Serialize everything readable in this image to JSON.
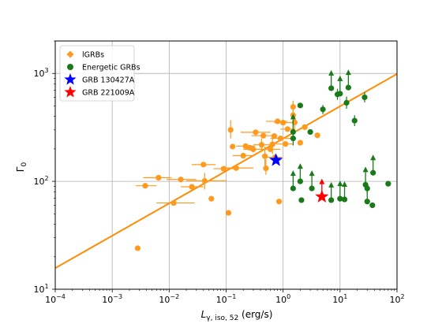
{
  "chart_data": {
    "type": "scatter",
    "xlabel": "L_{γ, iso, 52} (erg/s)",
    "ylabel": "Γ_0",
    "x_scale": "log",
    "y_scale": "log",
    "xlim": [
      0.0001,
      100
    ],
    "ylim": [
      10,
      2000
    ],
    "grid": true,
    "legend_position": "top-left",
    "x_ticks": [
      {
        "value": 0.0001,
        "base": "10",
        "exp": "−4"
      },
      {
        "value": 0.001,
        "base": "10",
        "exp": "−3"
      },
      {
        "value": 0.01,
        "base": "10",
        "exp": "−2"
      },
      {
        "value": 0.1,
        "base": "10",
        "exp": "−1"
      },
      {
        "value": 1,
        "base": "10",
        "exp": "0"
      },
      {
        "value": 10,
        "base": "10",
        "exp": "1"
      },
      {
        "value": 100,
        "base": "10",
        "exp": "2"
      }
    ],
    "y_ticks": [
      {
        "value": 10,
        "base": "10",
        "exp": "1"
      },
      {
        "value": 100,
        "base": "10",
        "exp": "2"
      },
      {
        "value": 1000,
        "base": "10",
        "exp": "3"
      }
    ],
    "fit_line": {
      "color": "#ff8c00",
      "points": [
        [
          0.0001,
          15.7
        ],
        [
          100,
          990
        ]
      ]
    },
    "series": [
      {
        "name": "lGRBs",
        "marker": "circle",
        "color": "#ff9a1f",
        "points": [
          {
            "x": 0.0028,
            "y": 24
          },
          {
            "x": 0.0038,
            "y": 91,
            "xerr": [
              0.0026,
              0.006
            ]
          },
          {
            "x": 0.0065,
            "y": 108,
            "xerr": [
              0.0035,
              0.011
            ]
          },
          {
            "x": 0.012,
            "y": 63,
            "xerr": [
              0.006,
              0.028
            ]
          },
          {
            "x": 0.016,
            "y": 104,
            "xerr": [
              0.009,
              0.03
            ]
          },
          {
            "x": 0.025,
            "y": 89,
            "xerr": [
              0.016,
              0.04
            ]
          },
          {
            "x": 0.04,
            "y": 143,
            "xerr": [
              0.025,
              0.065
            ]
          },
          {
            "x": 0.042,
            "y": 101,
            "xerr": [
              0.02,
              0.1
            ],
            "yerr": [
              84,
              120
            ]
          },
          {
            "x": 0.055,
            "y": 69
          },
          {
            "x": 0.09,
            "y": 131,
            "xerr": [
              0.06,
              0.14
            ]
          },
          {
            "x": 0.11,
            "y": 51
          },
          {
            "x": 0.12,
            "y": 300,
            "yerr": [
              250,
              370
            ]
          },
          {
            "x": 0.13,
            "y": 210
          },
          {
            "x": 0.15,
            "y": 133,
            "xerr": [
              0.1,
              0.3
            ]
          },
          {
            "x": 0.2,
            "y": 173,
            "xerr": [
              0.13,
              0.3
            ]
          },
          {
            "x": 0.22,
            "y": 212,
            "xerr": [
              0.15,
              0.32
            ]
          },
          {
            "x": 0.26,
            "y": 205
          },
          {
            "x": 0.3,
            "y": 198,
            "xerr": [
              0.2,
              0.45
            ]
          },
          {
            "x": 0.33,
            "y": 285,
            "xerr": [
              0.18,
              0.6
            ]
          },
          {
            "x": 0.42,
            "y": 218,
            "xerr": [
              0.3,
              0.6
            ],
            "yerr": [
              190,
              250
            ]
          },
          {
            "x": 0.45,
            "y": 265,
            "xerr": [
              0.28,
              0.7
            ]
          },
          {
            "x": 0.48,
            "y": 171,
            "yerr": [
              140,
              210
            ]
          },
          {
            "x": 0.5,
            "y": 132,
            "yerr": [
              115,
              160
            ]
          },
          {
            "x": 0.6,
            "y": 198,
            "xerr": [
              0.4,
              0.9
            ]
          },
          {
            "x": 0.65,
            "y": 220,
            "yerr": [
              180,
              260
            ]
          },
          {
            "x": 0.7,
            "y": 263
          },
          {
            "x": 0.72,
            "y": 167,
            "xerr": [
              0.5,
              0.95
            ]
          },
          {
            "x": 0.8,
            "y": 360,
            "xerr": [
              0.5,
              1.2
            ]
          },
          {
            "x": 0.85,
            "y": 65
          },
          {
            "x": 0.9,
            "y": 250,
            "xerr": [
              0.6,
              1.4
            ]
          },
          {
            "x": 1.0,
            "y": 350,
            "xerr": [
              0.7,
              1.6
            ]
          },
          {
            "x": 1.1,
            "y": 222,
            "xerr": [
              0.75,
              1.5
            ]
          },
          {
            "x": 1.2,
            "y": 305,
            "xerr": [
              0.9,
              1.6
            ]
          },
          {
            "x": 1.5,
            "y": 490,
            "yerr": [
              430,
              560
            ]
          },
          {
            "x": 1.5,
            "y": 410,
            "yerr": [
              360,
              470
            ]
          },
          {
            "x": 1.6,
            "y": 352,
            "yerr": [
              300,
              400
            ]
          },
          {
            "x": 2.0,
            "y": 228
          },
          {
            "x": 2.4,
            "y": 318
          },
          {
            "x": 4.0,
            "y": 267
          }
        ]
      },
      {
        "name": "Energetic GRBs",
        "marker": "circle",
        "color": "#1a7a1a",
        "points": [
          {
            "x": 1.5,
            "y": 250,
            "yerr": [
              215,
              295
            ]
          },
          {
            "x": 1.5,
            "y": 287,
            "lower_limit": true
          },
          {
            "x": 1.5,
            "y": 86,
            "lower_limit": true
          },
          {
            "x": 2.0,
            "y": 100,
            "lower_limit": true
          },
          {
            "x": 2.0,
            "y": 505
          },
          {
            "x": 2.1,
            "y": 67
          },
          {
            "x": 3.0,
            "y": 287
          },
          {
            "x": 3.2,
            "y": 86,
            "lower_limit": true
          },
          {
            "x": 5.0,
            "y": 465,
            "yerr": [
              420,
              510
            ]
          },
          {
            "x": 7.0,
            "y": 730,
            "lower_limit": true
          },
          {
            "x": 7.0,
            "y": 67,
            "lower_limit": true
          },
          {
            "x": 9.0,
            "y": 640,
            "yerr": [
              570,
              720
            ]
          },
          {
            "x": 10,
            "y": 650,
            "lower_limit": true
          },
          {
            "x": 10,
            "y": 69,
            "lower_limit": true
          },
          {
            "x": 12,
            "y": 68,
            "lower_limit": true
          },
          {
            "x": 13,
            "y": 535,
            "yerr": [
              470,
              610
            ]
          },
          {
            "x": 14,
            "y": 740,
            "lower_limit": true
          },
          {
            "x": 18,
            "y": 365,
            "yerr": [
              325,
              410
            ]
          },
          {
            "x": 27,
            "y": 601,
            "yerr": [
              540,
              670
            ]
          },
          {
            "x": 28,
            "y": 93,
            "lower_limit": true
          },
          {
            "x": 30,
            "y": 65,
            "lower_limit": true
          },
          {
            "x": 30,
            "y": 86,
            "yerr": [
              78,
              95
            ]
          },
          {
            "x": 37,
            "y": 60
          },
          {
            "x": 38,
            "y": 120,
            "lower_limit": true
          },
          {
            "x": 70,
            "y": 95
          }
        ]
      },
      {
        "name": "GRB 130427A",
        "marker": "star",
        "color": "#0000ff",
        "points": [
          {
            "x": 0.75,
            "y": 157
          }
        ]
      },
      {
        "name": "GRB 221009A",
        "marker": "star",
        "color": "#ff0000",
        "points": [
          {
            "x": 4.8,
            "y": 72,
            "lower_limit": true
          }
        ]
      }
    ]
  }
}
